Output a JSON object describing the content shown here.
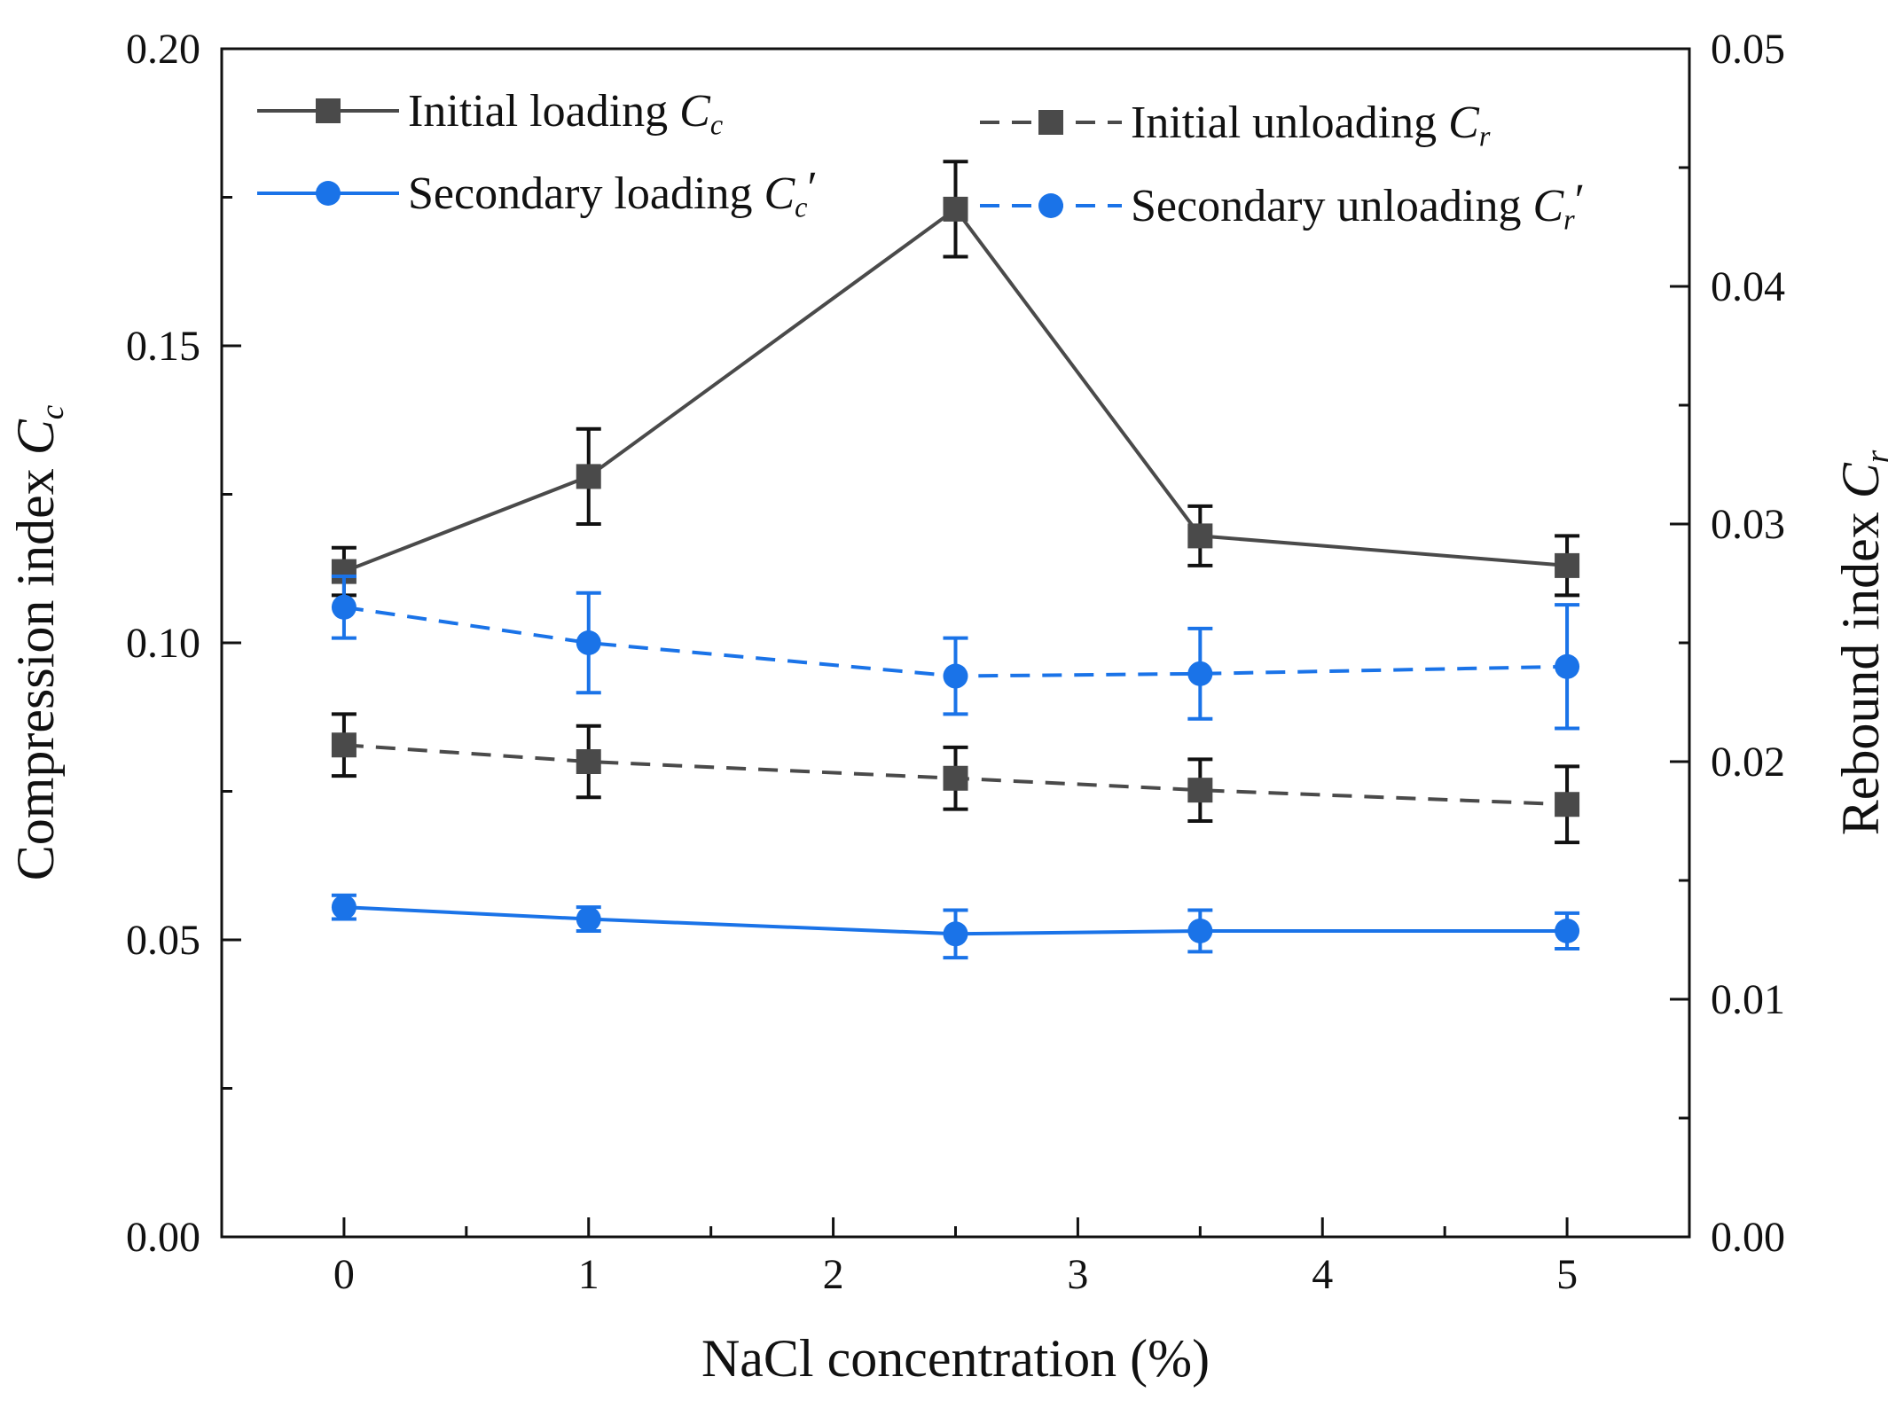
{
  "chart_data": {
    "type": "line",
    "title": "",
    "xlabel": "NaCl concentration (%)",
    "ylabel_left": {
      "text": "Compression index ",
      "symbol": "C",
      "sub": "c"
    },
    "ylabel_right": {
      "text": "Rebound index ",
      "symbol": "C",
      "sub": "r"
    },
    "xlim": [
      -0.5,
      5.5
    ],
    "ylim_left": [
      0,
      0.2
    ],
    "ylim_right": [
      0,
      0.05
    ],
    "x_ticks": [
      {
        "value": 0,
        "label": "0"
      },
      {
        "value": 1,
        "label": "1"
      },
      {
        "value": 2,
        "label": "2"
      },
      {
        "value": 3,
        "label": "3"
      },
      {
        "value": 4,
        "label": "4"
      },
      {
        "value": 5,
        "label": "5"
      }
    ],
    "y_left_ticks": [
      {
        "value": 0,
        "label": "0.00"
      },
      {
        "value": 0.05,
        "label": "0.05"
      },
      {
        "value": 0.1,
        "label": "0.10"
      },
      {
        "value": 0.15,
        "label": "0.15"
      },
      {
        "value": 0.2,
        "label": "0.20"
      }
    ],
    "y_right_ticks": [
      {
        "value": 0,
        "label": "0.00"
      },
      {
        "value": 0.01,
        "label": "0.01"
      },
      {
        "value": 0.02,
        "label": "0.02"
      },
      {
        "value": 0.03,
        "label": "0.03"
      },
      {
        "value": 0.04,
        "label": "0.04"
      },
      {
        "value": 0.05,
        "label": "0.05"
      }
    ],
    "grid": false,
    "legend_position": "top",
    "series": [
      {
        "name": "Initial loading Cc",
        "legend": {
          "text": "Initial loading ",
          "symbol": "C",
          "sub": "c",
          "prime": ""
        },
        "axis": "left",
        "color": "#4a4a4a",
        "error_color": "#111111",
        "line_style": "solid",
        "marker": "square",
        "x": [
          0,
          1,
          2.5,
          3.5,
          5
        ],
        "y": [
          0.112,
          0.128,
          0.173,
          0.118,
          0.113
        ],
        "error": [
          0.004,
          0.008,
          0.008,
          0.005,
          0.005
        ]
      },
      {
        "name": "Secondary loading Cc'",
        "legend": {
          "text": "Secondary loading ",
          "symbol": "C",
          "sub": "c",
          "prime": "′"
        },
        "axis": "left",
        "color": "#1a73e8",
        "error_color": "#1a73e8",
        "line_style": "solid",
        "marker": "circle",
        "x": [
          0,
          1,
          2.5,
          3.5,
          5
        ],
        "y": [
          0.0555,
          0.0535,
          0.051,
          0.0515,
          0.0515
        ],
        "error": [
          0.002,
          0.002,
          0.004,
          0.0035,
          0.003
        ]
      },
      {
        "name": "Initial unloading Cr",
        "legend": {
          "text": "Initial unloading ",
          "symbol": "C",
          "sub": "r",
          "prime": ""
        },
        "axis": "right",
        "color": "#4a4a4a",
        "error_color": "#111111",
        "line_style": "dashed",
        "marker": "square",
        "x": [
          0,
          1,
          2.5,
          3.5,
          5
        ],
        "y": [
          0.0207,
          0.02,
          0.0193,
          0.0188,
          0.0182
        ],
        "error": [
          0.0013,
          0.0015,
          0.0013,
          0.0013,
          0.0016
        ]
      },
      {
        "name": "Secondary unloading Cr'",
        "legend": {
          "text": "Secondary unloading ",
          "symbol": "C",
          "sub": "r",
          "prime": "′"
        },
        "axis": "right",
        "color": "#1a73e8",
        "error_color": "#1a73e8",
        "line_style": "dashed",
        "marker": "circle",
        "x": [
          0,
          1,
          2.5,
          3.5,
          5
        ],
        "y": [
          0.0265,
          0.025,
          0.0236,
          0.0237,
          0.024
        ],
        "error": [
          0.0013,
          0.0021,
          0.0016,
          0.0019,
          0.0026
        ]
      }
    ]
  }
}
